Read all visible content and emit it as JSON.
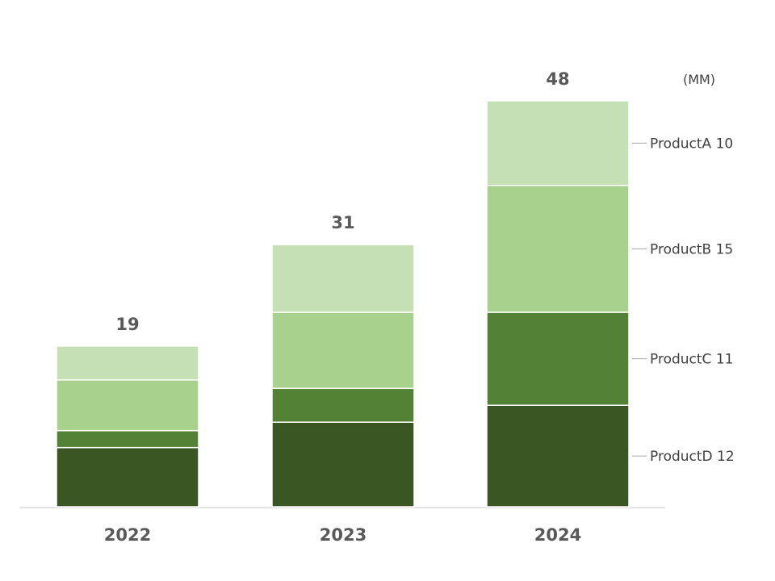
{
  "chart_data": {
    "type": "bar",
    "stacked": true,
    "unit": "(MM)",
    "categories": [
      "2022",
      "2023",
      "2024"
    ],
    "totals": [
      19,
      31,
      48
    ],
    "series": [
      {
        "name": "ProductD",
        "values": [
          7,
          10,
          12
        ],
        "color": "#3a5723"
      },
      {
        "name": "ProductC",
        "values": [
          2,
          4,
          11
        ],
        "color": "#538135"
      },
      {
        "name": "ProductB",
        "values": [
          6,
          9,
          15
        ],
        "color": "#a9d18e"
      },
      {
        "name": "ProductA",
        "values": [
          4,
          8,
          10
        ],
        "color": "#c5e0b4"
      }
    ],
    "legend": {
      "placement": "right",
      "entries": [
        "ProductA 10",
        "ProductB 15",
        "ProductC 11",
        "ProductD 12"
      ]
    },
    "ylim": [
      0,
      48
    ],
    "grid": false
  }
}
